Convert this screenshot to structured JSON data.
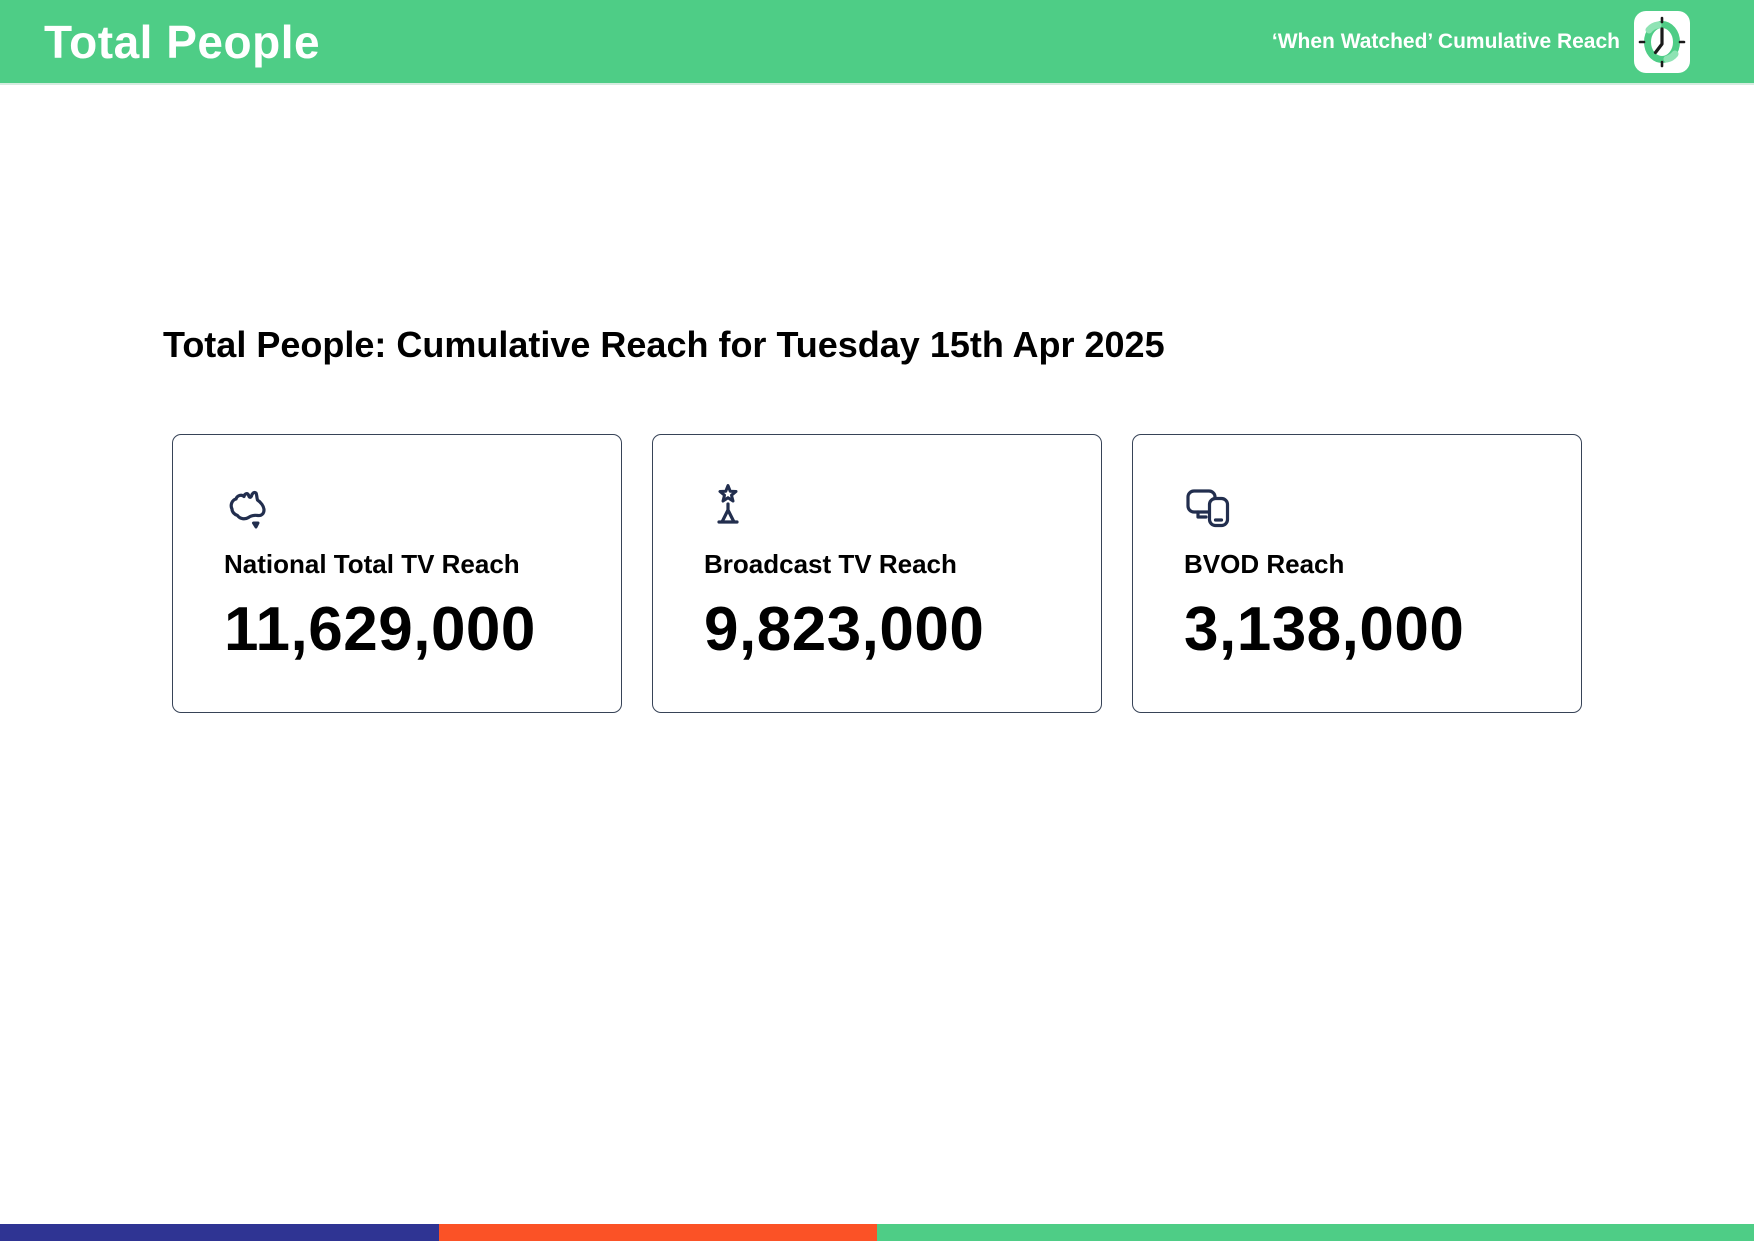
{
  "header": {
    "title": "Total People",
    "subtitle": "‘When Watched’ Cumulative Reach",
    "icon": "clock-icon",
    "bg_color": "#4ECD86",
    "text_color": "#ffffff"
  },
  "main": {
    "heading": "Total People: Cumulative Reach for Tuesday 15th Apr 2025",
    "cards": [
      {
        "icon": "australia-map-icon",
        "label": "National Total TV Reach",
        "value": "11,629,000"
      },
      {
        "icon": "broadcast-tower-icon",
        "label": "Broadcast TV Reach",
        "value": "9,823,000"
      },
      {
        "icon": "devices-icon",
        "label": "BVOD Reach",
        "value": "3,138,000"
      }
    ]
  },
  "footer": {
    "segments": [
      {
        "color": "#2F3493",
        "width_pct": 25
      },
      {
        "color": "#FB5226",
        "width_pct": 25
      },
      {
        "color": "#4ECD86",
        "width_pct": 50
      }
    ]
  },
  "colors": {
    "header_green": "#4ECD86",
    "icon_navy": "#222E4E",
    "card_border": "#374357",
    "footer_blue": "#2F3493",
    "footer_orange": "#FB5226",
    "footer_green": "#4ECD86"
  }
}
